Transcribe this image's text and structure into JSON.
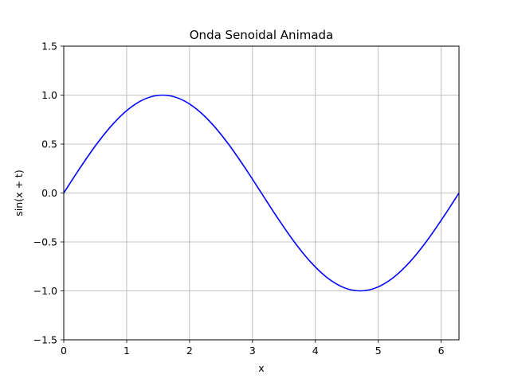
{
  "chart_data": {
    "type": "line",
    "title": "Onda Senoidal Animada",
    "xlabel": "x",
    "ylabel": "sin(x + t)",
    "xlim": [
      0,
      6.283185307
    ],
    "ylim": [
      -1.5,
      1.5
    ],
    "grid": true,
    "x_ticks": [
      0,
      1,
      2,
      3,
      4,
      5,
      6
    ],
    "x_tick_labels": [
      "0",
      "1",
      "2",
      "3",
      "4",
      "5",
      "6"
    ],
    "y_ticks": [
      -1.5,
      -1.0,
      -0.5,
      0.0,
      0.5,
      1.0,
      1.5
    ],
    "y_tick_labels": [
      "−1.5",
      "−1.0",
      "−0.5",
      "0.0",
      "0.5",
      "1.0",
      "1.5"
    ],
    "series": [
      {
        "color": "#0000ff",
        "x": [
          0,
          0.2618,
          0.5236,
          0.7854,
          1.0472,
          1.309,
          1.5708,
          1.8326,
          2.0944,
          2.3562,
          2.618,
          2.8798,
          3.1416,
          3.4034,
          3.6652,
          3.927,
          4.1888,
          4.4506,
          4.7124,
          4.9742,
          5.236,
          5.4978,
          5.7596,
          6.0214,
          6.2832
        ],
        "y": [
          0,
          0.2588,
          0.5,
          0.7071,
          0.866,
          0.9659,
          1,
          0.9659,
          0.866,
          0.7071,
          0.5,
          0.2588,
          0,
          -0.2588,
          -0.5,
          -0.7071,
          -0.866,
          -0.9659,
          -1,
          -0.9659,
          -0.866,
          -0.7071,
          -0.5,
          -0.2588,
          0
        ]
      }
    ]
  }
}
